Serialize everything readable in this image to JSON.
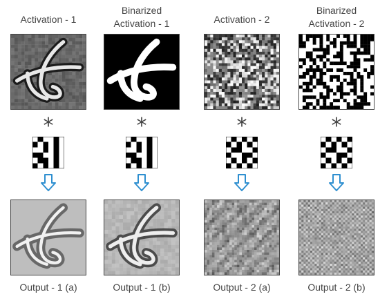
{
  "columns": [
    {
      "id": "act1",
      "title_lines": [
        "Activation - 1"
      ],
      "caption": "Output - 1 (a)",
      "operator": "*",
      "top_kind": "act1",
      "kernel_kind": "k1",
      "bottom_kind": "out1"
    },
    {
      "id": "bin1",
      "title_lines": [
        "Binarized",
        "Activation - 1"
      ],
      "caption": "Output - 1 (b)",
      "operator": "*",
      "top_kind": "bin1",
      "kernel_kind": "k1",
      "bottom_kind": "out1b"
    },
    {
      "id": "act2",
      "title_lines": [
        "Activation - 2"
      ],
      "caption": "Output - 2 (a)",
      "operator": "*",
      "top_kind": "act2",
      "kernel_kind": "k2",
      "bottom_kind": "out2"
    },
    {
      "id": "bin2",
      "title_lines": [
        "Binarized",
        "Activation - 2"
      ],
      "caption": "Output - 2 (b)",
      "operator": "*",
      "top_kind": "bin2",
      "kernel_kind": "k2",
      "bottom_kind": "out2b"
    }
  ],
  "colors": {
    "arrow": "#2e8fd0",
    "text": "#444444"
  },
  "icons": {
    "operator": "convolution-star-icon",
    "arrow": "down-arrow-icon"
  }
}
